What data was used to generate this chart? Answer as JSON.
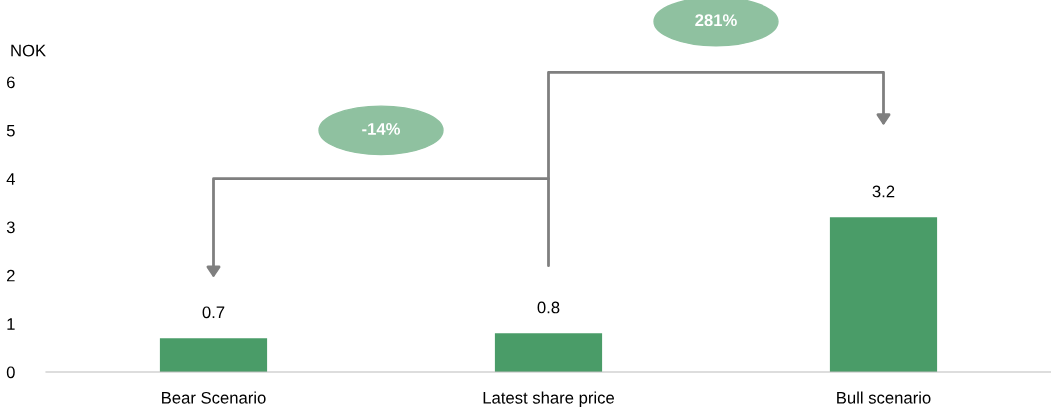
{
  "chart_data": {
    "type": "bar",
    "ylabel": "NOK",
    "categories": [
      "Bear Scenario",
      "Latest share price",
      "Bull scenario"
    ],
    "values": [
      0.7,
      0.8,
      3.2
    ],
    "color": "#4a9c68",
    "ylim": [
      0,
      6
    ],
    "yticks": [
      0,
      1,
      2,
      3,
      4,
      5,
      6
    ],
    "grid": false,
    "data_labels": true,
    "annotations": [
      "-14%",
      "281%"
    ]
  }
}
